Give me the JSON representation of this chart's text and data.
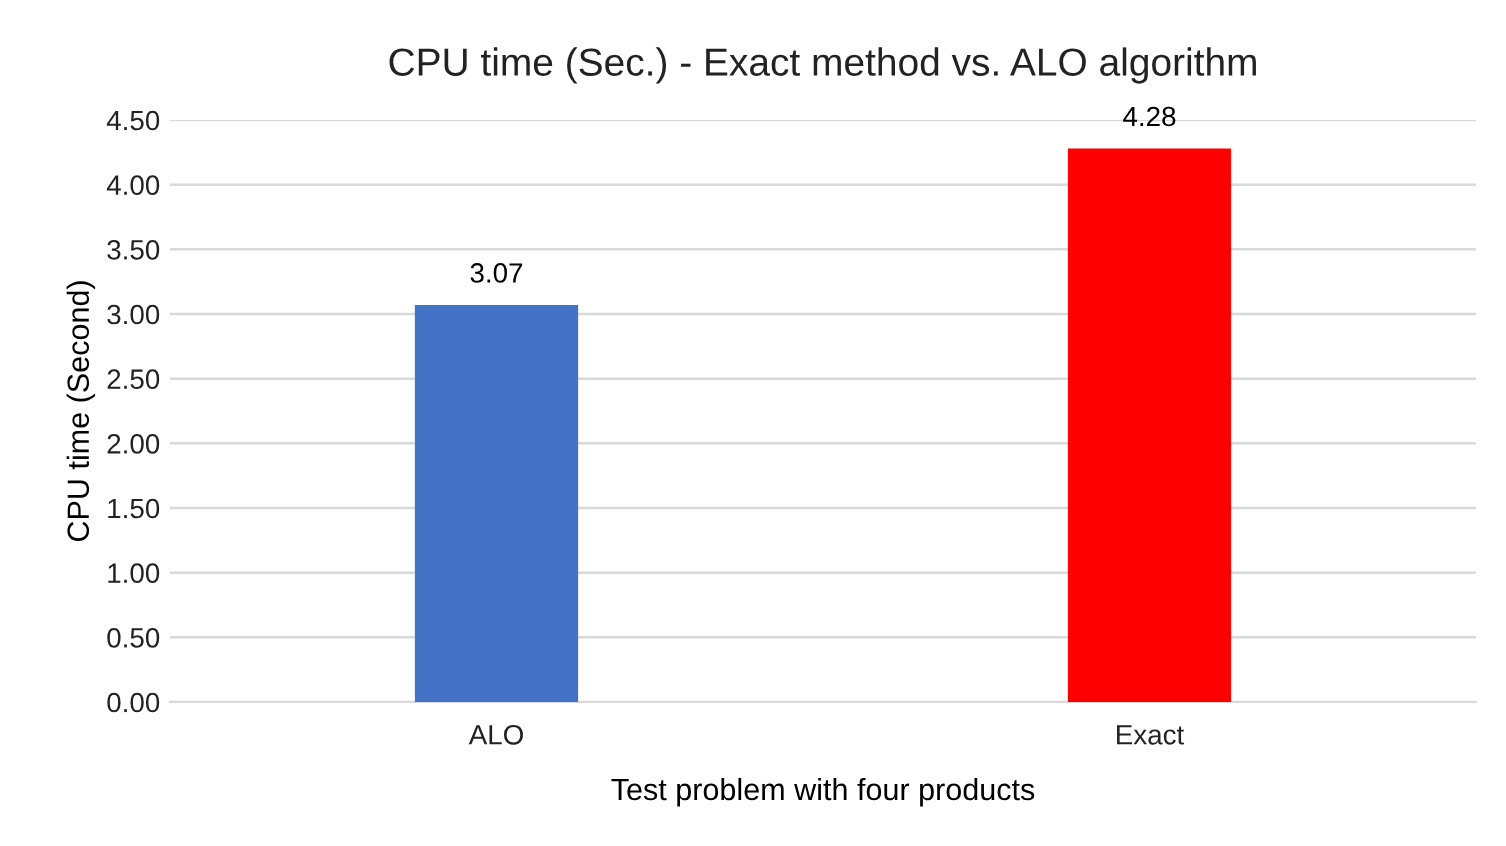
{
  "chart_data": {
    "type": "bar",
    "title": "CPU time (Sec.) - Exact method vs. ALO algorithm",
    "xlabel": "Test problem with four products",
    "ylabel": "CPU time (Second)",
    "categories": [
      "ALO",
      "Exact"
    ],
    "values": [
      3.07,
      4.28
    ],
    "colors": [
      "#4472c4",
      "#ff0000"
    ],
    "data_labels": true,
    "ylim": [
      0,
      4.5
    ],
    "yticks": [
      {
        "value": 0,
        "label": "0.00"
      },
      {
        "value": 0.5,
        "label": "0.50"
      },
      {
        "value": 1,
        "label": "1.00"
      },
      {
        "value": 1.5,
        "label": "1.50"
      },
      {
        "value": 2,
        "label": "2.00"
      },
      {
        "value": 2.5,
        "label": "2.50"
      },
      {
        "value": 3,
        "label": "3.00"
      },
      {
        "value": 3.5,
        "label": "3.50"
      },
      {
        "value": 4,
        "label": "4.00"
      },
      {
        "value": 4.5,
        "label": "4.50"
      }
    ],
    "grid": "y",
    "legend": false
  }
}
